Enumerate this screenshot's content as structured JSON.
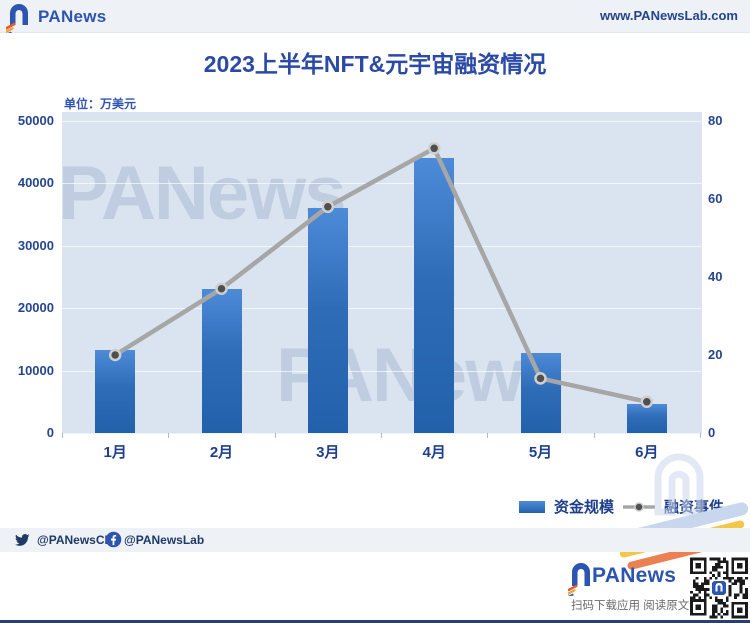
{
  "header": {
    "brand": "PANews",
    "url": "www.PANewsLab.com"
  },
  "title": "2023上半年NFT&元宇宙融资情况",
  "unit_label": "单位：万美元",
  "watermark": "PANews",
  "chart_data": {
    "type": "bar",
    "subtype": "bar+line combo",
    "title": "2023上半年NFT&元宇宙融资情况",
    "unit": "万美元",
    "categories": [
      "1月",
      "2月",
      "3月",
      "4月",
      "5月",
      "6月"
    ],
    "series": [
      {
        "name": "资金规模",
        "type": "bar",
        "axis": "left",
        "values": [
          13300,
          23000,
          36000,
          44000,
          12800,
          4700
        ]
      },
      {
        "name": "融资事件",
        "type": "line",
        "axis": "right",
        "values": [
          20,
          37,
          58,
          73,
          14,
          8
        ]
      }
    ],
    "left_axis": {
      "ticks": [
        0,
        10000,
        20000,
        30000,
        40000,
        50000
      ],
      "max": 50000
    },
    "right_axis": {
      "ticks": [
        0,
        20,
        40,
        60,
        80
      ],
      "max": 80
    },
    "legend_position": "bottom-right",
    "grid": true,
    "colors": {
      "bar_top": "#4d8bd8",
      "bar_bottom": "#2261aa",
      "line": "#a6a6a6",
      "dot_fill": "#4f4f4f",
      "dot_ring": "#cfcfcf",
      "plot_background": "#dae4f0",
      "accent_blue": "#2b55b0"
    }
  },
  "social": {
    "twitter": "@PANewsCN",
    "facebook": "@PANewsLab"
  },
  "footer": {
    "brand": "PANews",
    "caption": "扫码下载应用 阅读原文"
  }
}
